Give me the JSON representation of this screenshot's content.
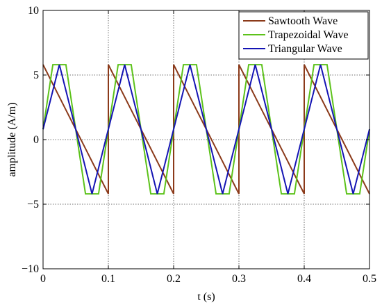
{
  "chart_data": {
    "type": "line",
    "xlabel": "t (s)",
    "ylabel": "amplitude (A/m)",
    "xlim": [
      0,
      0.5
    ],
    "ylim": [
      -10,
      10
    ],
    "xticks": [
      0,
      0.1,
      0.2,
      0.3,
      0.4,
      0.5
    ],
    "xtick_labels": [
      "0",
      "0.1",
      "0.2",
      "0.3",
      "0.4",
      "0.5"
    ],
    "yticks": [
      -10,
      -5,
      0,
      5,
      10
    ],
    "ytick_labels": [
      "−10",
      "−5",
      "0",
      "5",
      "10"
    ],
    "grid": "dotted",
    "legend_position": "top-right",
    "series": [
      {
        "name": "Sawtooth Wave",
        "color": "#8b3a1a",
        "x": [
          0,
          0.1,
          0.1,
          0.2,
          0.2,
          0.3,
          0.3,
          0.4,
          0.4,
          0.5
        ],
        "y": [
          5.8,
          -4.2,
          5.8,
          -4.2,
          5.8,
          -4.2,
          5.8,
          -4.2,
          5.8,
          -4.2
        ]
      },
      {
        "name": "Trapezoidal Wave",
        "color": "#5cc21a",
        "x": [
          0,
          0.015,
          0.035,
          0.065,
          0.085,
          0.115,
          0.135,
          0.165,
          0.185,
          0.215,
          0.235,
          0.265,
          0.285,
          0.315,
          0.335,
          0.365,
          0.385,
          0.415,
          0.435,
          0.465,
          0.485,
          0.5
        ],
        "y": [
          0.8,
          5.8,
          5.8,
          -4.2,
          -4.2,
          5.8,
          5.8,
          -4.2,
          -4.2,
          5.8,
          5.8,
          -4.2,
          -4.2,
          5.8,
          5.8,
          -4.2,
          -4.2,
          5.8,
          5.8,
          -4.2,
          -4.2,
          0.8
        ]
      },
      {
        "name": "Triangular Wave",
        "color": "#1414b4",
        "x": [
          0,
          0.025,
          0.075,
          0.125,
          0.175,
          0.225,
          0.275,
          0.325,
          0.375,
          0.425,
          0.475,
          0.5
        ],
        "y": [
          0.8,
          5.8,
          -4.2,
          5.8,
          -4.2,
          5.8,
          -4.2,
          5.8,
          -4.2,
          5.8,
          -4.2,
          0.8
        ]
      }
    ]
  }
}
